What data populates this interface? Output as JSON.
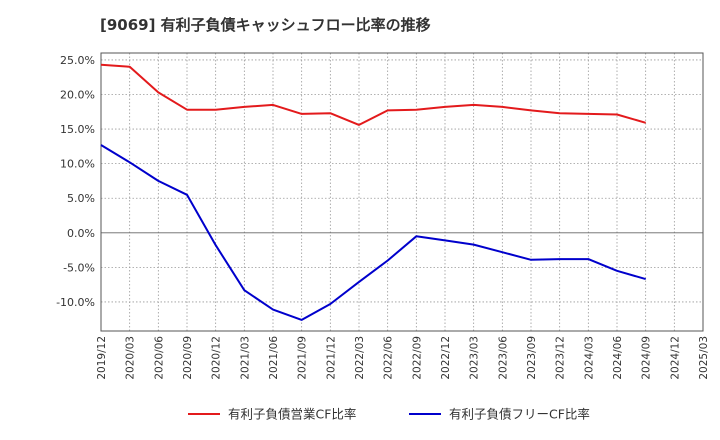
{
  "chart_data": {
    "type": "line",
    "title": "[9069]  有利子負債キャッシュフロー比率の推移",
    "xlabel": "",
    "ylabel": "",
    "ylim": [
      -14.2,
      26
    ],
    "y_ticks": [
      25,
      20,
      15,
      10,
      5,
      0,
      -5,
      -10
    ],
    "y_tick_labels": [
      "25.0%",
      "20.0%",
      "15.0%",
      "10.0%",
      "5.0%",
      "0.0%",
      "-5.0%",
      "-10.0%"
    ],
    "x_labels": [
      "2019/12",
      "2020/03",
      "2020/06",
      "2020/09",
      "2020/12",
      "2021/03",
      "2021/06",
      "2021/09",
      "2021/12",
      "2022/03",
      "2022/06",
      "2022/09",
      "2022/12",
      "2023/03",
      "2023/06",
      "2023/09",
      "2023/12",
      "2024/03",
      "2024/06",
      "2024/09",
      "2024/12",
      "2025/03"
    ],
    "grid": true,
    "legend_position": "bottom",
    "series": [
      {
        "name": "有利子負債営業CF比率",
        "color": "#e31a1c",
        "values": [
          24.3,
          24.0,
          20.3,
          17.8,
          17.8,
          18.2,
          18.5,
          17.2,
          17.3,
          15.6,
          17.7,
          17.8,
          18.2,
          18.5,
          18.2,
          17.7,
          17.3,
          17.2,
          17.1,
          15.9,
          null,
          null
        ]
      },
      {
        "name": "有利子負債フリーCF比率",
        "color": "#0000cc",
        "values": [
          12.7,
          10.2,
          7.5,
          5.5,
          -1.8,
          -8.3,
          -11.1,
          -12.6,
          -10.3,
          -7.1,
          -4.0,
          -0.5,
          -1.1,
          -1.7,
          -2.8,
          -3.9,
          -3.8,
          -3.8,
          -5.5,
          -6.7,
          null,
          null
        ]
      }
    ]
  }
}
